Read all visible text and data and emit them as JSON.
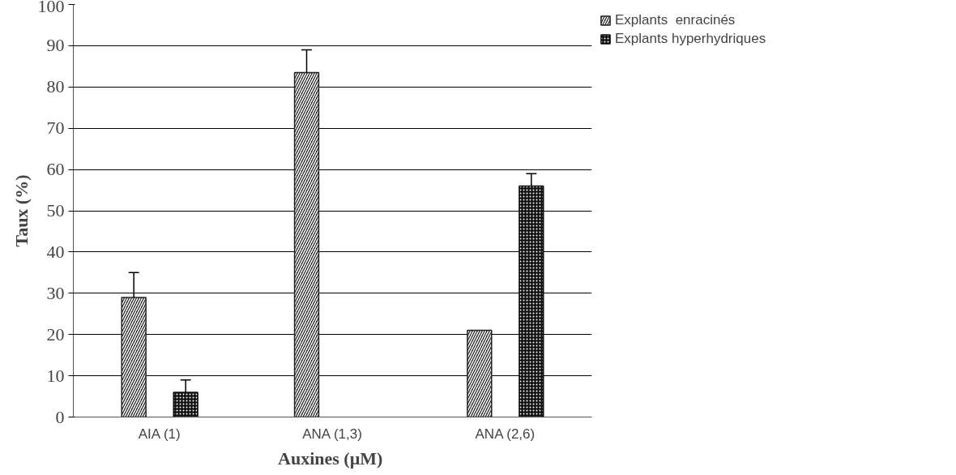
{
  "chart_data": {
    "type": "bar",
    "xlabel": "Auxines  (µM)",
    "ylabel": "Taux (%)",
    "categories": [
      "AIA (1)",
      "ANA (1,3)",
      "ANA (2,6)"
    ],
    "series": [
      {
        "name": "Explants  enracinés",
        "color": "#222222",
        "values": [
          29,
          83.5,
          21
        ],
        "errors": [
          6,
          5.5,
          null
        ]
      },
      {
        "name": "Explants hyperhydriques",
        "color": "#111111",
        "values": [
          6,
          null,
          56
        ],
        "errors": [
          3,
          null,
          3
        ]
      }
    ],
    "ylim": [
      0,
      100
    ],
    "yticks": [
      0,
      10,
      20,
      30,
      40,
      50,
      60,
      70,
      80,
      90,
      100
    ],
    "grid": "y",
    "legend": "top right"
  }
}
